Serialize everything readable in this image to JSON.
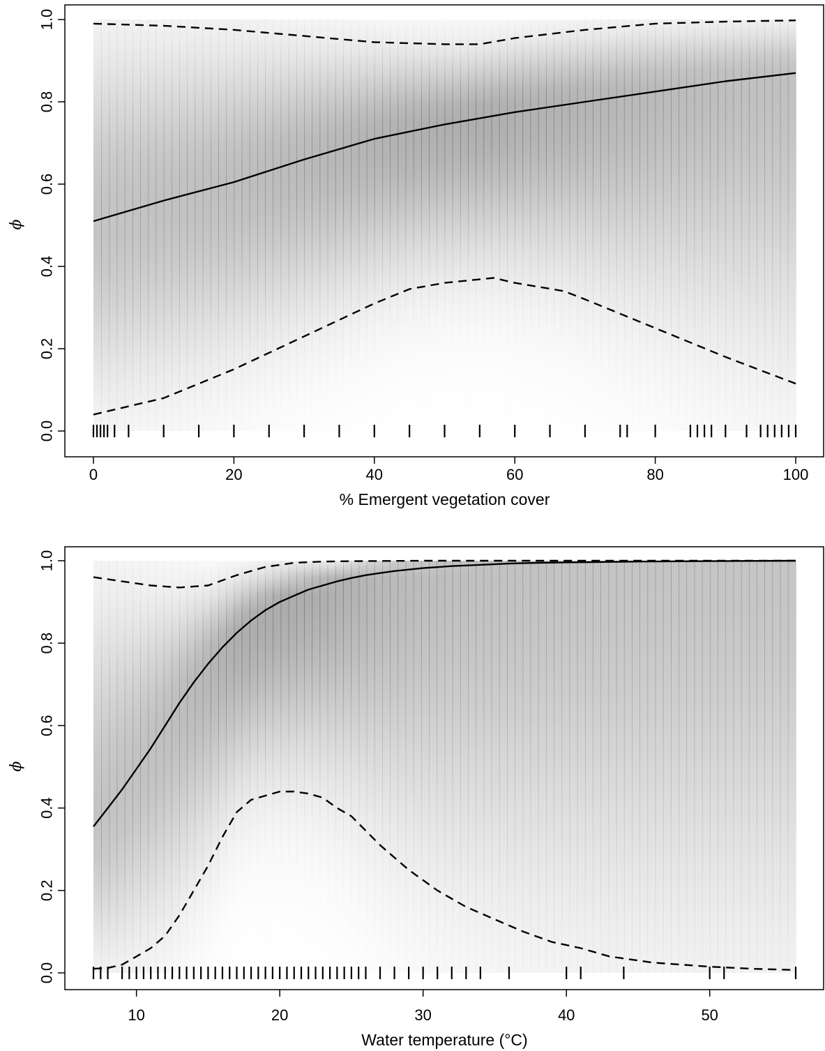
{
  "chart_data": [
    {
      "type": "line",
      "xlabel": "% Emergent vegetation cover",
      "ylabel": "ϕ",
      "xlim": [
        0,
        100
      ],
      "ylim": [
        0,
        1
      ],
      "xticks": [
        "0",
        "20",
        "40",
        "60",
        "80",
        "100"
      ],
      "yticks": [
        "0.0",
        "0.2",
        "0.4",
        "0.6",
        "0.8",
        "1.0"
      ],
      "shading": "grayscale posterior density of ϕ",
      "series": [
        {
          "style": "solid",
          "x": [
            0,
            10,
            20,
            30,
            40,
            50,
            60,
            70,
            80,
            90,
            100
          ],
          "y": [
            0.51,
            0.56,
            0.605,
            0.66,
            0.71,
            0.745,
            0.775,
            0.8,
            0.825,
            0.85,
            0.87
          ]
        },
        {
          "style": "dashed",
          "x": [
            0,
            10,
            20,
            30,
            40,
            50,
            55,
            60,
            70,
            80,
            90,
            100
          ],
          "y": [
            0.99,
            0.985,
            0.975,
            0.96,
            0.945,
            0.94,
            0.94,
            0.955,
            0.975,
            0.99,
            0.995,
            0.998
          ]
        },
        {
          "style": "dashed",
          "x": [
            0,
            10,
            20,
            30,
            40,
            45,
            50,
            57,
            60,
            67,
            70,
            80,
            90,
            100
          ],
          "y": [
            0.04,
            0.08,
            0.15,
            0.23,
            0.31,
            0.345,
            0.36,
            0.372,
            0.36,
            0.34,
            0.32,
            0.25,
            0.18,
            0.115
          ]
        }
      ],
      "rug": [
        0,
        0.5,
        1,
        1.5,
        2,
        3,
        5,
        10,
        15,
        20,
        25,
        30,
        35,
        40,
        45,
        50,
        55,
        60,
        65,
        70,
        75,
        76,
        80,
        85,
        86,
        87,
        88,
        90,
        93,
        95,
        96,
        97,
        98,
        99,
        100
      ]
    },
    {
      "type": "line",
      "xlabel": "Water temperature (°C)",
      "ylabel": "ϕ",
      "xlim": [
        7,
        56
      ],
      "ylim": [
        0,
        1
      ],
      "xticks": [
        "10",
        "20",
        "30",
        "40",
        "50"
      ],
      "yticks": [
        "0.0",
        "0.2",
        "0.4",
        "0.6",
        "0.8",
        "1.0"
      ],
      "shading": "grayscale posterior density of ϕ",
      "series": [
        {
          "style": "solid",
          "x": [
            7,
            8,
            9,
            10,
            11,
            12,
            13,
            14,
            15,
            16,
            17,
            18,
            19,
            20,
            21,
            22,
            23,
            24,
            25,
            26,
            27,
            28,
            30,
            32,
            34,
            36,
            38,
            40,
            45,
            50,
            56
          ],
          "y": [
            0.355,
            0.4,
            0.445,
            0.495,
            0.545,
            0.6,
            0.655,
            0.705,
            0.75,
            0.79,
            0.825,
            0.855,
            0.88,
            0.9,
            0.915,
            0.93,
            0.94,
            0.95,
            0.958,
            0.965,
            0.97,
            0.975,
            0.982,
            0.987,
            0.99,
            0.993,
            0.995,
            0.996,
            0.998,
            0.999,
            1.0
          ]
        },
        {
          "style": "dashed",
          "x": [
            7,
            9,
            11,
            13,
            15,
            17,
            19,
            21,
            23,
            25,
            30,
            40,
            56
          ],
          "y": [
            0.96,
            0.95,
            0.94,
            0.935,
            0.94,
            0.965,
            0.985,
            0.995,
            0.998,
            0.999,
            1.0,
            1.0,
            1.0
          ]
        },
        {
          "style": "dashed",
          "x": [
            7,
            8,
            9,
            10,
            11,
            12,
            13,
            14,
            15,
            16,
            17,
            18,
            19,
            20,
            21,
            22,
            23,
            24,
            25,
            27,
            29,
            31,
            33,
            35,
            37,
            39,
            41,
            43,
            46,
            50,
            53,
            56
          ],
          "y": [
            0.01,
            0.012,
            0.02,
            0.04,
            0.06,
            0.09,
            0.14,
            0.2,
            0.26,
            0.33,
            0.39,
            0.42,
            0.43,
            0.44,
            0.44,
            0.435,
            0.425,
            0.4,
            0.38,
            0.31,
            0.25,
            0.2,
            0.16,
            0.13,
            0.1,
            0.075,
            0.06,
            0.04,
            0.025,
            0.015,
            0.01,
            0.007
          ]
        }
      ],
      "rug": [
        7,
        7.5,
        8,
        9,
        9.5,
        10,
        10.5,
        11,
        11.5,
        12,
        12.5,
        13,
        13.5,
        14,
        14.5,
        15,
        15.5,
        16,
        16.5,
        17,
        17.5,
        18,
        18.5,
        19,
        19.5,
        20,
        20.5,
        21,
        21.5,
        22,
        22.5,
        23,
        23.5,
        24,
        24.5,
        25,
        25.5,
        26,
        27,
        28,
        29,
        30,
        31,
        32,
        33,
        34,
        36,
        40,
        41,
        44,
        50,
        51,
        56
      ]
    }
  ]
}
